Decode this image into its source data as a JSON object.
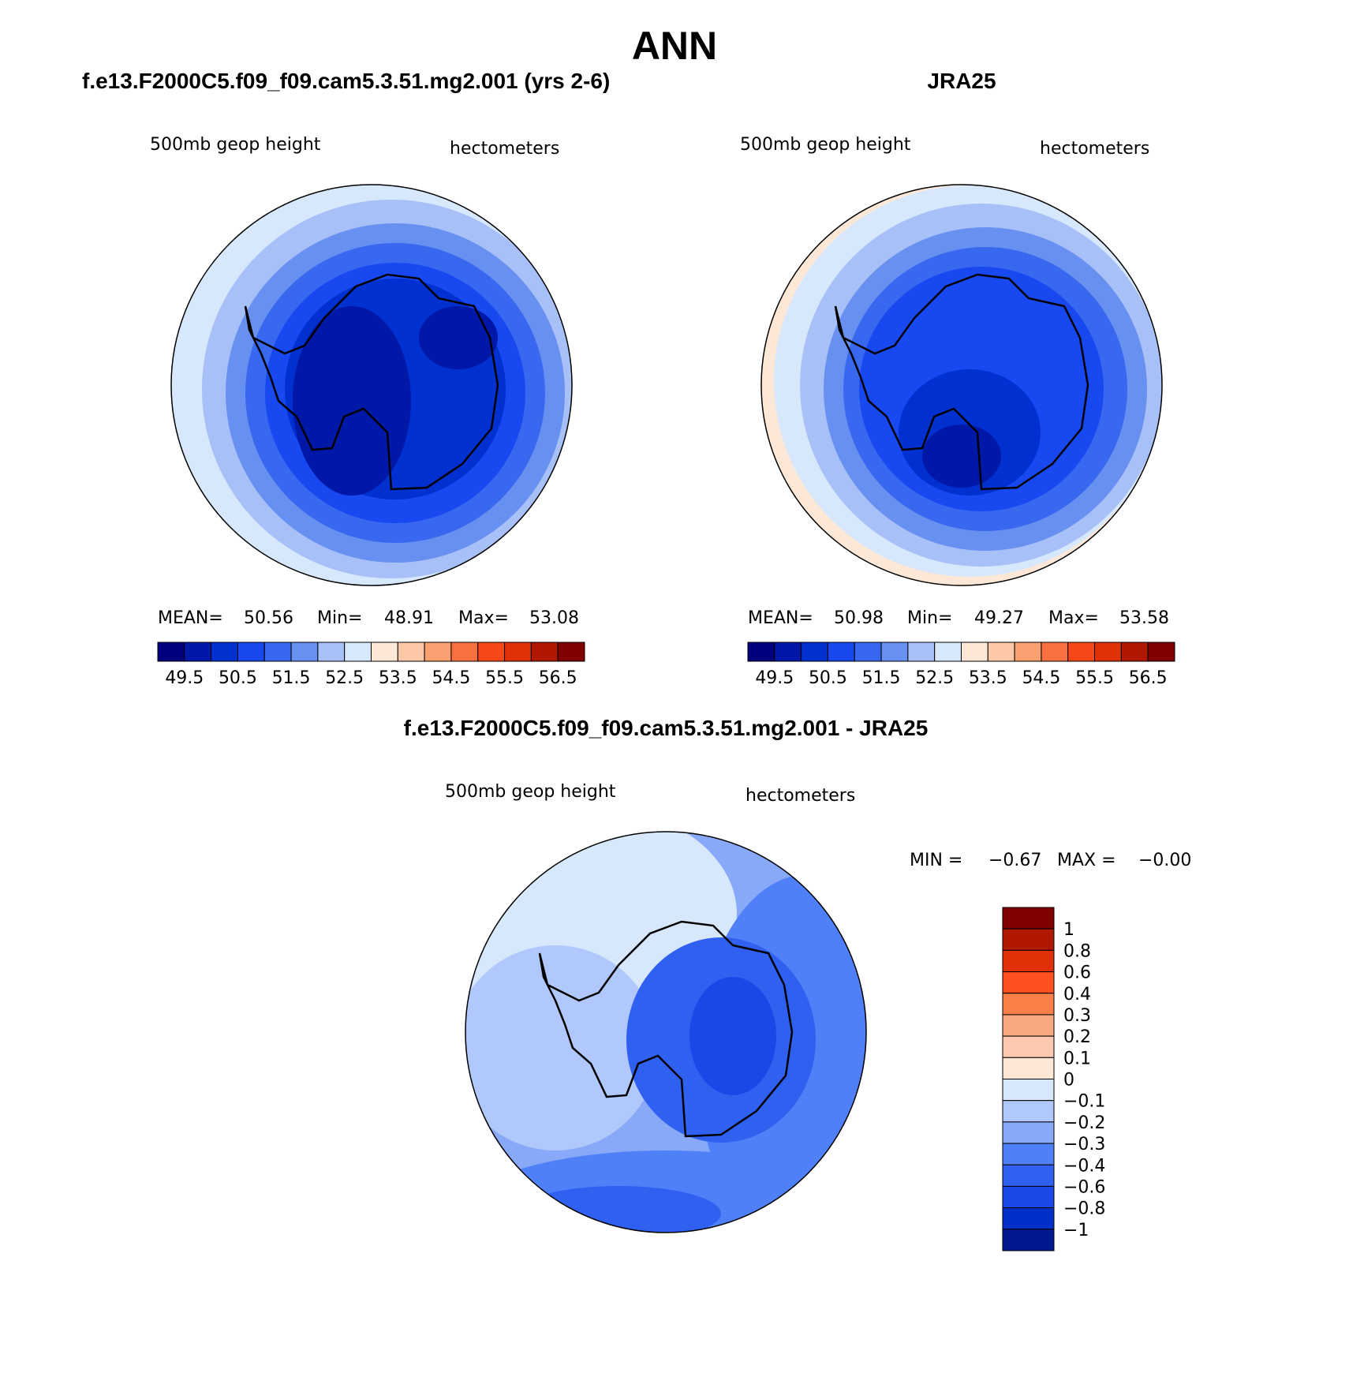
{
  "title": "ANN",
  "panels": [
    {
      "title": "f.e13.F2000C5.f09_f09.cam5.3.51.mg2.001 (yrs 2-6)",
      "variable": "500mb geop height",
      "units": "hectometers",
      "stats": [
        "MEAN=",
        "50.56",
        "Min=",
        "48.91",
        "Max=",
        "53.08"
      ],
      "colorbar": {
        "colors": [
          "#00007f",
          "#0018a8",
          "#0030d0",
          "#1848f0",
          "#3868f0",
          "#6890f0",
          "#a8c0f8",
          "#d8e8fc",
          "#fde8d8",
          "#fcc8a8",
          "#f8a070",
          "#f87040",
          "#f84818",
          "#e03008",
          "#b01800",
          "#800000"
        ],
        "labels": [
          "49.5",
          "50.5",
          "51.5",
          "52.5",
          "53.5",
          "54.5",
          "55.5",
          "56.5"
        ]
      }
    },
    {
      "title": "JRA25",
      "variable": "500mb geop height",
      "units": "hectometers",
      "stats": [
        "MEAN=",
        "50.98",
        "Min=",
        "49.27",
        "Max=",
        "53.58"
      ],
      "colorbar": {
        "colors": [
          "#00007f",
          "#0018a8",
          "#0030d0",
          "#1848f0",
          "#3868f0",
          "#6890f0",
          "#a8c0f8",
          "#d8e8fc",
          "#fde8d8",
          "#fcc8a8",
          "#f8a070",
          "#f87040",
          "#f84818",
          "#e03008",
          "#b01800",
          "#800000"
        ],
        "labels": [
          "49.5",
          "50.5",
          "51.5",
          "52.5",
          "53.5",
          "54.5",
          "55.5",
          "56.5"
        ]
      }
    },
    {
      "title": "f.e13.F2000C5.f09_f09.cam5.3.51.mg2.001 - JRA25",
      "variable": "500mb geop height",
      "units": "hectometers",
      "stats": [
        "MIN =",
        "−0.67",
        "MAX =",
        "−0.00"
      ],
      "colorbar": {
        "colors": [
          "#800000",
          "#b01800",
          "#e03008",
          "#ff5020",
          "#f88048",
          "#f8a880",
          "#fcc8b0",
          "#fde8d8",
          "#d8e8fc",
          "#b0c8fc",
          "#88a8f8",
          "#5080f8",
          "#3060f0",
          "#1848e8",
          "#0030c8",
          "#001890"
        ],
        "labels": [
          "1",
          "0.8",
          "0.6",
          "0.4",
          "0.3",
          "0.2",
          "0.1",
          "0",
          "−0.1",
          "−0.2",
          "−0.3",
          "−0.4",
          "−0.6",
          "−0.8",
          "−1"
        ]
      }
    }
  ]
}
